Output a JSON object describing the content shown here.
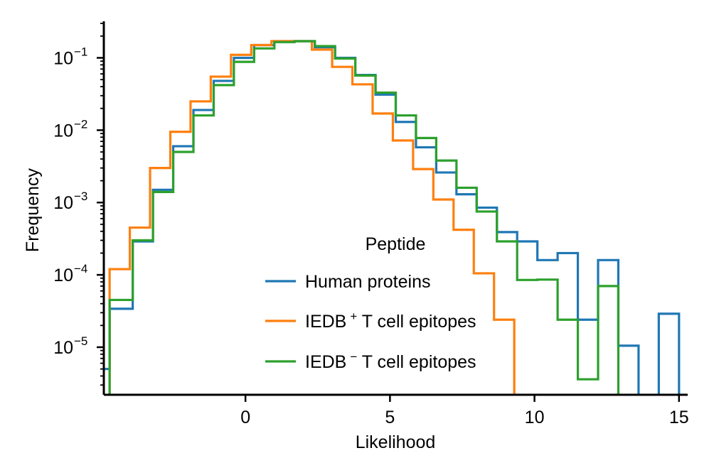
{
  "chart_data": {
    "type": "step-histogram",
    "xlabel": "Likelihood",
    "ylabel": "Frequency",
    "yscale": "log",
    "xlim": [
      -4.9,
      15.3
    ],
    "ylim": [
      2.2e-06,
      0.32
    ],
    "x_ticks": [
      0,
      5,
      10,
      15
    ],
    "y_ticks": [
      {
        "value": 0.1,
        "base": "10",
        "exp": "−1"
      },
      {
        "value": 0.01,
        "base": "10",
        "exp": "−2"
      },
      {
        "value": 0.001,
        "base": "10",
        "exp": "−3"
      },
      {
        "value": 0.0001,
        "base": "10",
        "exp": "−4"
      },
      {
        "value": 1e-05,
        "base": "10",
        "exp": "−5"
      }
    ],
    "grid": false,
    "legend": {
      "title": "Peptide",
      "placement": "lower-center",
      "entries": [
        {
          "text": "Human proteins",
          "sup": ""
        },
        {
          "text_pre": "IEDB",
          "sup": "+",
          "text_post": " T cell epitopes"
        },
        {
          "text_pre": "IEDB",
          "sup": "−",
          "text_post": " T cell epitopes"
        }
      ]
    },
    "series": [
      {
        "name": "Human proteins",
        "color": "#1f77b4",
        "edges": [
          -5.5,
          -4.7,
          -3.9,
          -3.2,
          -2.5,
          -1.8,
          -1.1,
          -0.4,
          0.3,
          1.0,
          1.7,
          2.4,
          3.1,
          3.8,
          4.5,
          5.2,
          5.9,
          6.6,
          7.3,
          8.0,
          8.7,
          9.4,
          10.1,
          10.8,
          11.5,
          12.2,
          12.9,
          13.6,
          14.3,
          15.0
        ],
        "values": [
          5e-06,
          3.4e-05,
          0.00029,
          0.0015,
          0.006,
          0.019,
          0.048,
          0.1,
          0.15,
          0.17,
          0.17,
          0.14,
          0.1,
          0.058,
          0.031,
          0.013,
          0.0058,
          0.0026,
          0.0013,
          0.00085,
          0.00039,
          0.00029,
          0.00016,
          0.0002,
          2.4e-05,
          0.00016,
          1.05e-05,
          null,
          2.9e-05
        ]
      },
      {
        "name": "IEDB+ T cell epitopes",
        "color": "#ff7f0e",
        "edges": [
          -4.7,
          -4.0,
          -3.3,
          -2.6,
          -1.9,
          -1.2,
          -0.5,
          0.2,
          0.9,
          1.6,
          2.3,
          3.0,
          3.7,
          4.4,
          5.1,
          5.8,
          6.5,
          7.2,
          7.9,
          8.6,
          9.3
        ],
        "values": [
          0.00012,
          0.00045,
          0.003,
          0.0095,
          0.025,
          0.055,
          0.11,
          0.15,
          0.17,
          0.17,
          0.13,
          0.075,
          0.043,
          0.017,
          0.0072,
          0.0029,
          0.0011,
          0.00042,
          0.000105,
          2.4e-05
        ]
      },
      {
        "name": "IEDB− T cell epitopes",
        "color": "#2ca02c",
        "edges": [
          -4.7,
          -3.9,
          -3.2,
          -2.5,
          -1.8,
          -1.1,
          -0.4,
          0.3,
          1.0,
          1.7,
          2.4,
          3.1,
          3.8,
          4.5,
          5.2,
          5.9,
          6.6,
          7.3,
          8.0,
          8.7,
          9.4,
          10.1,
          10.8,
          11.5,
          12.2,
          12.9
        ],
        "values": [
          4.5e-05,
          0.0003,
          0.0014,
          0.005,
          0.016,
          0.042,
          0.088,
          0.135,
          0.165,
          0.17,
          0.145,
          0.098,
          0.057,
          0.033,
          0.016,
          0.0078,
          0.0038,
          0.0016,
          0.00075,
          0.00029,
          8.5e-05,
          8.6e-05,
          2.4e-05,
          3.6e-06,
          7e-05
        ]
      }
    ]
  }
}
